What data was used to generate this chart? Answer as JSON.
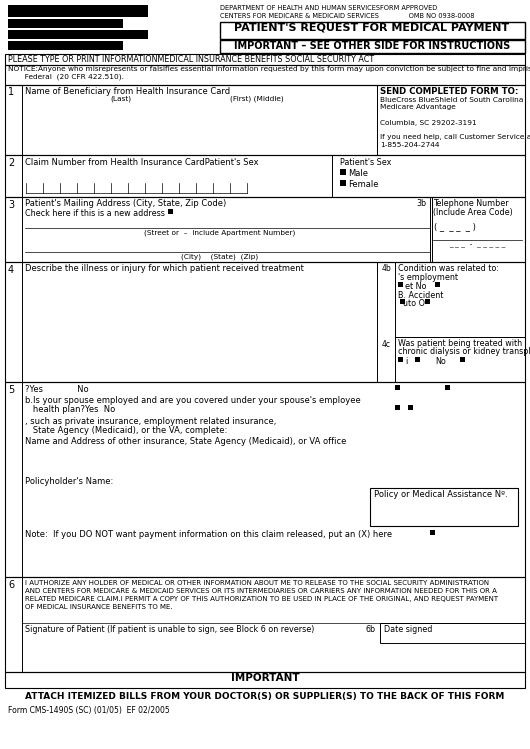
{
  "title": "PATIENT'S REQUEST FOR MEDICAL PAYMENT",
  "subtitle": "IMPORTANT – SEE OTHER SIDE FOR INSTRUCTIONS",
  "header_line1": "DEPARTMENT OF HEALTH AND HUMAN SERVICESFORM APPROVED",
  "header_line2": "CENTERS FOR MEDICARE & MEDICAID SERVICES              OMB NO 0938-0008",
  "notice_bar": "PLEASE TYPE OR PRINT INFORMATIONMEDICAL INSURANCE BENEFITS SOCIAL SECURITY ACT",
  "notice_text1": "NOTICE:Anyone who misrepresents or falsifies essential information requested by this form may upon conviction be subject to fine and imprisonment under",
  "notice_text2": "       Federal  (20 CFR 422.510).",
  "send_to_title": "SEND COMPLETED FORM TO:",
  "send_to_lines": [
    "BlueCross BlueShield of South Carolina",
    "Medicare Advantage",
    "",
    "Columbia, SC 29202-3191",
    "",
    "If you need help, call Customer Service at",
    "1-855-204-2744"
  ],
  "row1_label": "Name of Beneficiary from Health Insurance Card",
  "row1_sub_last": "(Last)",
  "row1_sub_first": "(First) (Middle)",
  "row2_label": "Claim Number from Health Insurance CardPatient's Sex",
  "row3_label": "Patient's Mailing Address (City, State, Zip Code)",
  "row3_check": "Check here if this is a new address",
  "row3b_label": "Telephone Number",
  "row3b_label2": "(Include Area Code)",
  "row3_street": "(Street or  –  Include Apartment Number)",
  "row3_city": "(City)    (State)  (Zip)",
  "row4_label": "Describe the illness or injury for which patient received treatment",
  "row4b_title": "Condition was related to:",
  "row4b_employ": "'s employment",
  "row4b_yes": "et No",
  "row4b_accident": "B. Accident",
  "row4b_auto": "uto O",
  "row4c_label1": "Was patient being treated with",
  "row4c_label2": "chronic dialysis or kidney transplant?",
  "row4c_yes": "i",
  "row4c_no": "No",
  "row5_a": "?Yes             No",
  "row5_b1": "b.Is your spouse employed and are you covered under your spouse's employee",
  "row5_b2": "   health plan?Yes  No",
  "row5_c1": ", such as private insurance, employment related insurance,",
  "row5_c2": "   State Agency (Medicaid), or the VA, complete:",
  "row5_d": "Name and Address of other insurance, State Agency (Medicaid), or VA office",
  "row5_e": "Policyholder's Name:",
  "row5_f": "Note:  If you DO NOT want payment information on this claim released, put an (X) here",
  "row5_policy": "Policy or Medical Assistance Nº.",
  "row6_text1": "I AUTHORIZE ANY HOLDER OF MEDICAL OR OTHER INFORMATION ABOUT ME TO RELEASE TO THE SOCIAL SECURITY ADMINISTRATION",
  "row6_text2": "AND CENTERS FOR MEDICARE & MEDICAID SERVICES OR ITS INTERMEDIARIES OR CARRIERS ANY INFORMATION NEEDED FOR THIS OR A",
  "row6_text3": "RELATED MEDICARE CLAIM.I PERMIT A COPY OF THIS AUTHORIZATION TO BE USED IN PLACE OF THE ORIGINAL, AND REQUEST PAYMENT",
  "row6_text4": "OF MEDICAL INSURANCE BENEFITS TO ME.",
  "row6_sig": "Signature of Patient (If patient is unable to sign, see Block 6 on reverse)",
  "row6_date": "Date signed",
  "important_bottom": "IMPORTANT",
  "attach_text": "ATTACH ITEMIZED BILLS FROM YOUR DOCTOR(S) OR SUPPLIER(S) TO THE BACK OF THIS FORM",
  "form_number": "Form CMS-1490S (SC) (01/05)  EF 02/2005",
  "bg_color": "#ffffff"
}
